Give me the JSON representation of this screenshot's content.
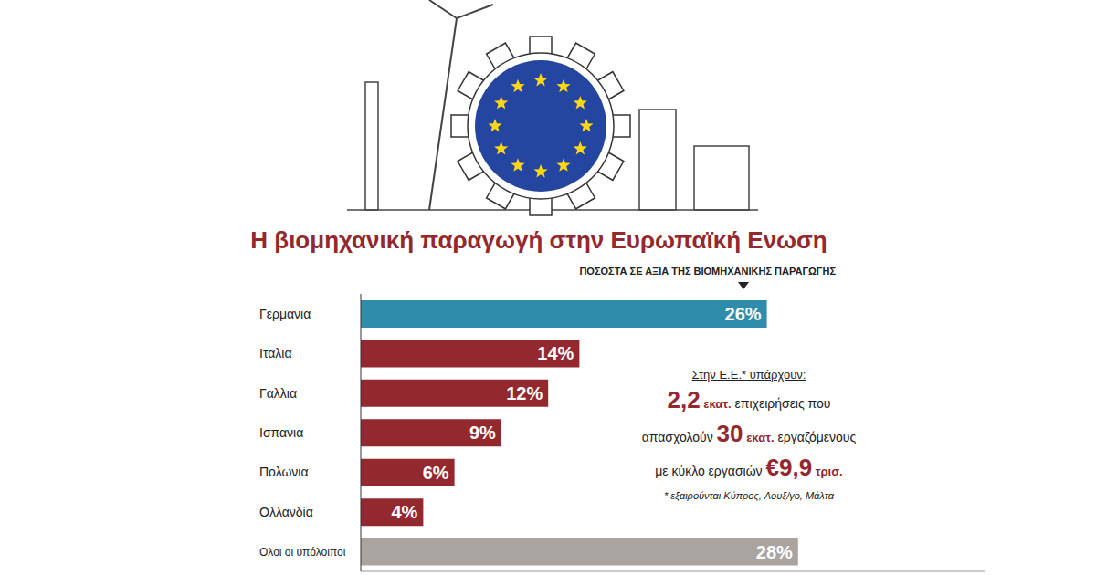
{
  "chart_data": {
    "type": "bar",
    "orientation": "horizontal",
    "title": "Η βιομηχανική παραγωγή στην Ευρωπαϊκή Ενωση",
    "subtitle": "ΠΟΣΟΣΤΑ ΣΕ ΑΞΙΑ ΤΗΣ ΒΙΟΜΗΧΑΝΙΚΗΣ ΠΑΡΑΓΩΓΗΣ",
    "categories": [
      "Γερμανια",
      "Ιταλια",
      "Γαλλια",
      "Ισπανια",
      "Πολωνια",
      "Ολλανδία",
      "Ολοι οι υπόλοιποι"
    ],
    "values": [
      26,
      14,
      12,
      9,
      6,
      4,
      28
    ],
    "value_labels": [
      "26%",
      "14%",
      "12%",
      "9%",
      "6%",
      "4%",
      "28%"
    ],
    "colors": [
      "#2f8dab",
      "#93282f",
      "#93282f",
      "#93282f",
      "#93282f",
      "#93282f",
      "#aaa4a1"
    ],
    "xlim": [
      0,
      40
    ],
    "data_labels": true,
    "tick_labels": "y",
    "grid": false,
    "annotation": {
      "heading": "Στην Ε.Ε.* υπάρχουν:",
      "lines": [
        {
          "value": "2,2",
          "unit": "εκατ.",
          "after": "επιχειρήσεις που"
        },
        {
          "before": "απασχολούν",
          "value": "30",
          "unit": "εκατ.",
          "after": "εργαζόμενους"
        },
        {
          "before": "με κύκλο εργασιών",
          "value": "€9,9",
          "unit": "τρισ."
        }
      ],
      "footnote": "* εξαιρούνται Κύπρος, Λουξ/γο, Μάλτα"
    }
  }
}
